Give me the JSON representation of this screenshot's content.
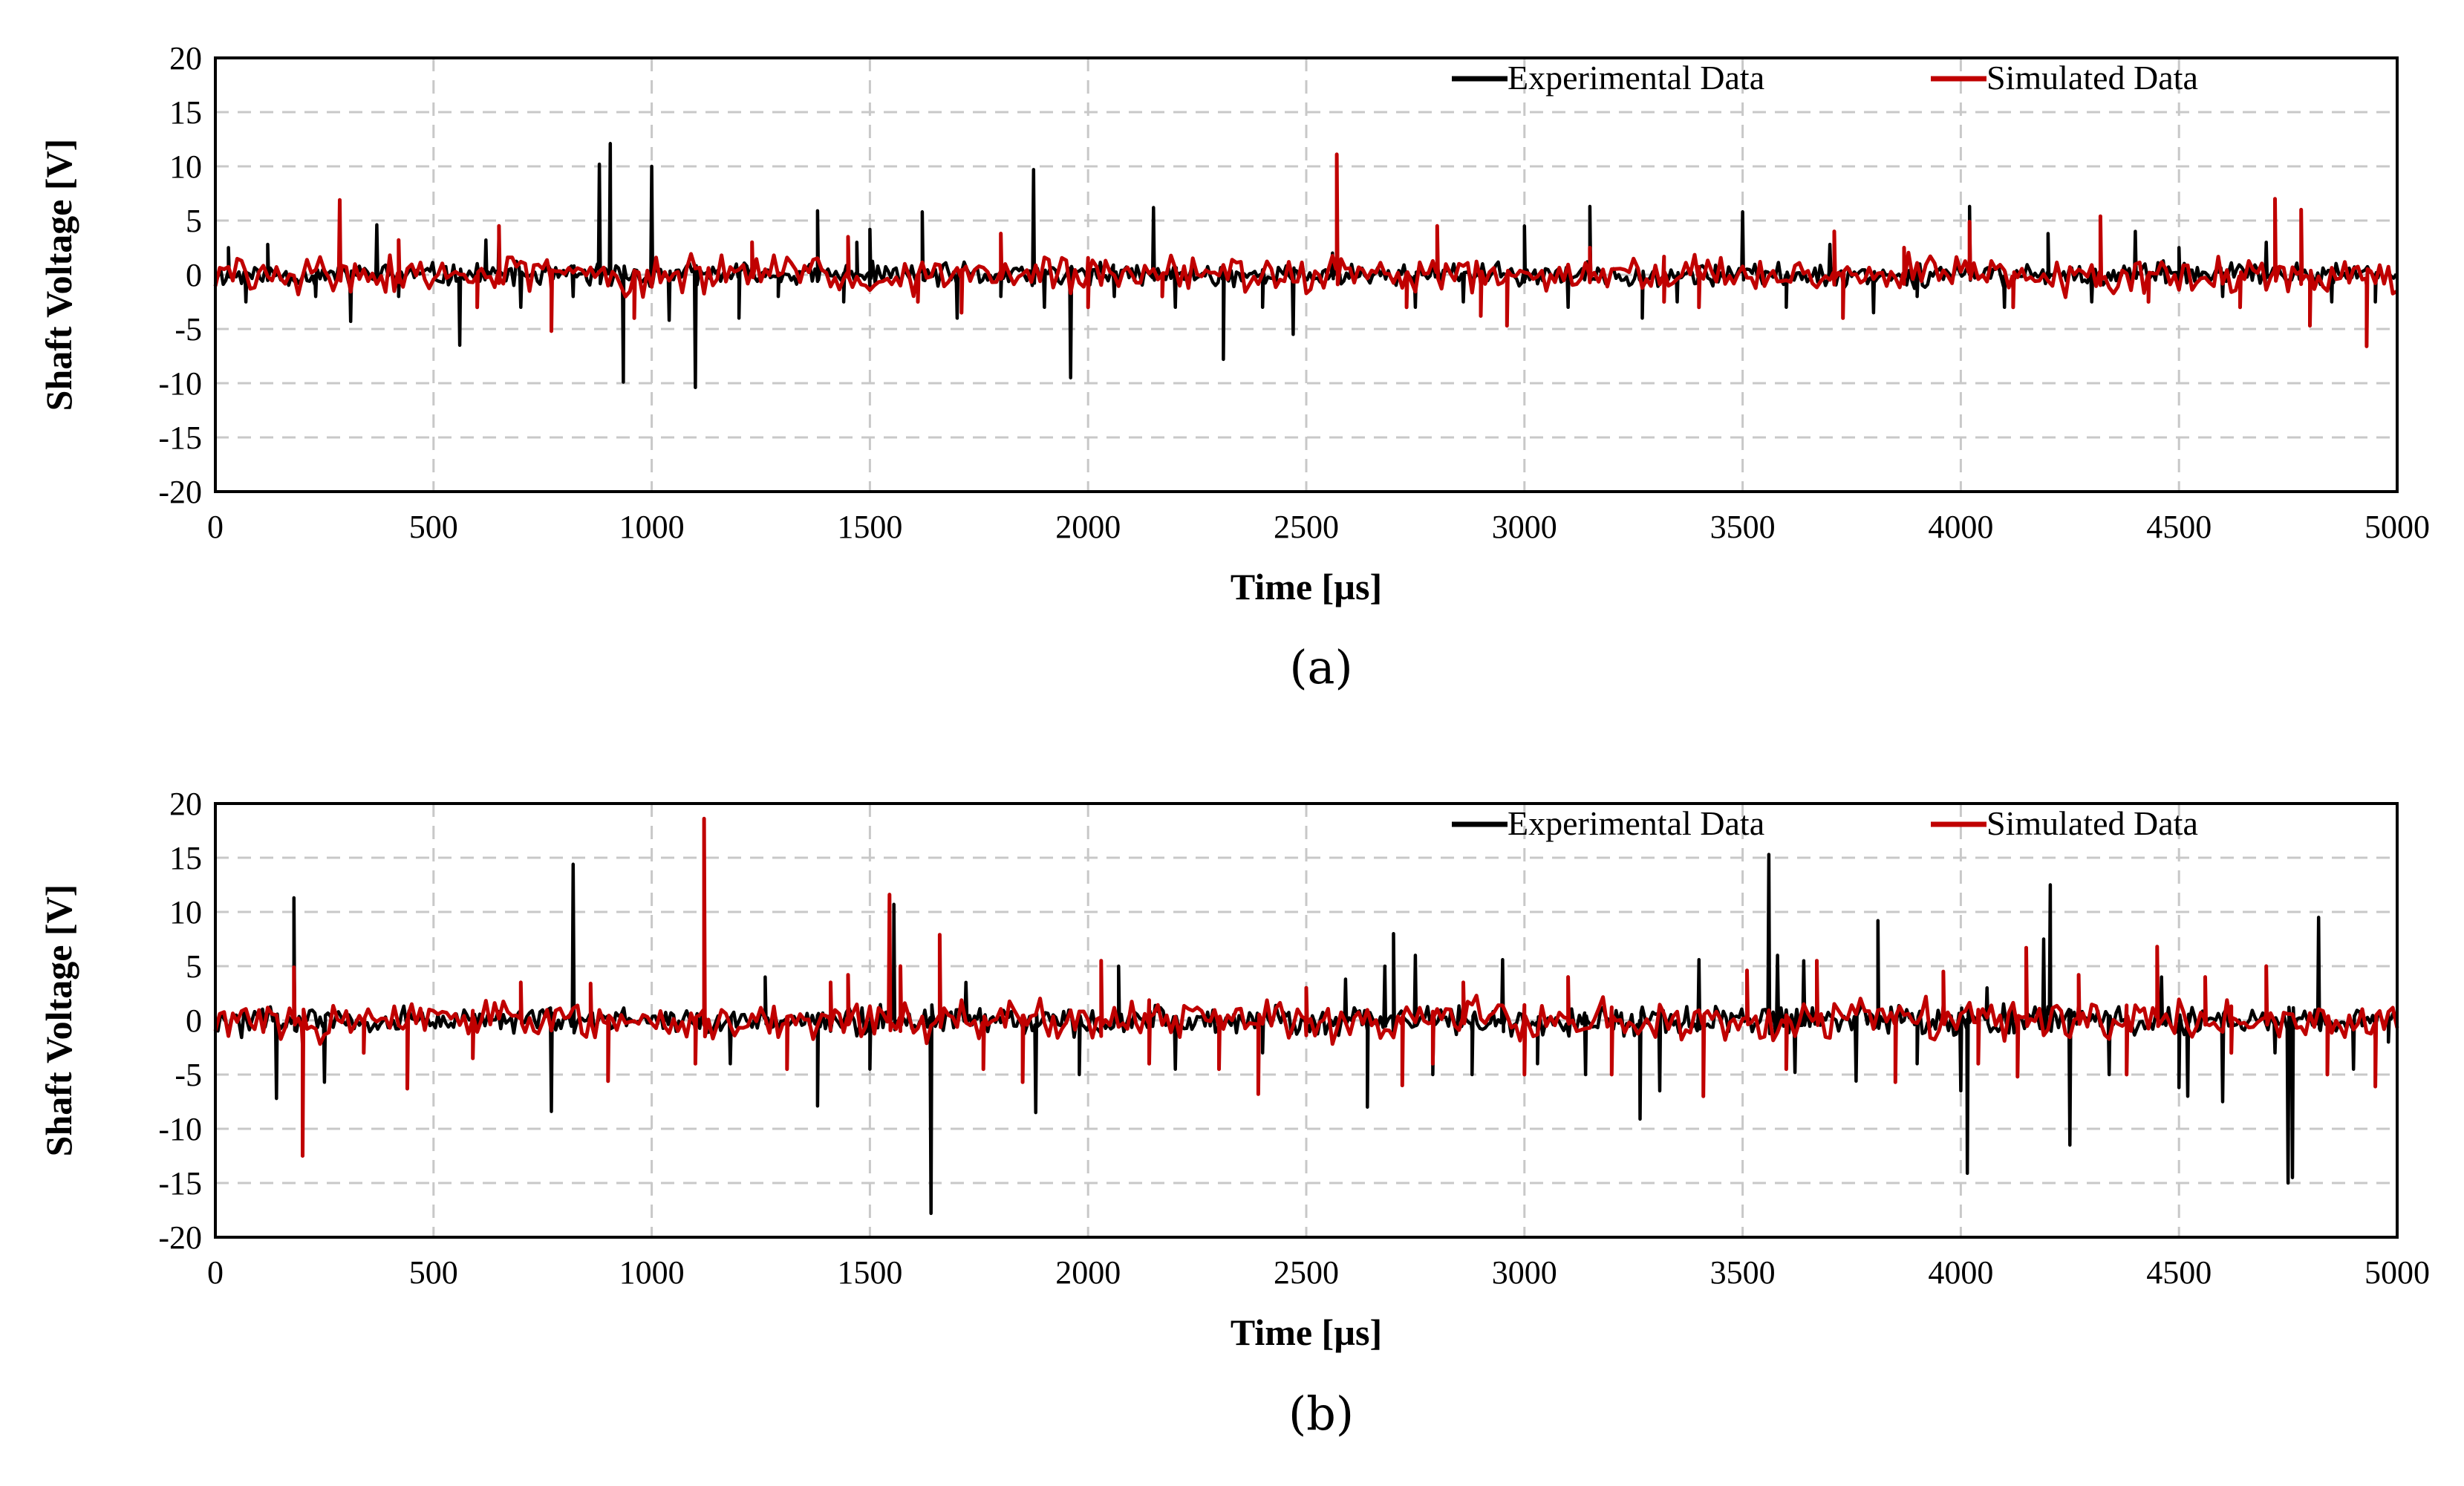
{
  "chart_data": [
    {
      "type": "line",
      "caption": "(a)",
      "xlabel": "Time [µs]",
      "ylabel": "Shaft Voltage [V]",
      "xlim": [
        0,
        5000
      ],
      "ylim": [
        -20,
        20
      ],
      "xticks": [
        0,
        500,
        1000,
        1500,
        2000,
        2500,
        3000,
        3500,
        4000,
        4500,
        5000
      ],
      "yticks": [
        20,
        15,
        10,
        5,
        0,
        -5,
        -10,
        -15,
        -20
      ],
      "grid": true,
      "legend": "top-right",
      "noise_amplitude": {
        "Experimental Data": 1.3,
        "Simulated Data": 2.2
      },
      "series": [
        {
          "name": "Experimental Data",
          "color": "#000000",
          "spikes": [
            [
              30,
              2.5
            ],
            [
              70,
              -2.5
            ],
            [
              120,
              2.8
            ],
            [
              230,
              -2
            ],
            [
              310,
              -4.3
            ],
            [
              370,
              4.6
            ],
            [
              420,
              -2
            ],
            [
              560,
              -6.5
            ],
            [
              620,
              3.2
            ],
            [
              650,
              3.8
            ],
            [
              700,
              -3
            ],
            [
              820,
              -2
            ],
            [
              880,
              10.2
            ],
            [
              905,
              12.1
            ],
            [
              935,
              -9.9
            ],
            [
              1000,
              10
            ],
            [
              1040,
              -4.2
            ],
            [
              1100,
              -10.4
            ],
            [
              1200,
              -4
            ],
            [
              1290,
              -2
            ],
            [
              1380,
              5.9
            ],
            [
              1440,
              -2.5
            ],
            [
              1470,
              3
            ],
            [
              1500,
              4.2
            ],
            [
              1620,
              5.8
            ],
            [
              1700,
              -4
            ],
            [
              1800,
              -2
            ],
            [
              1875,
              9.7
            ],
            [
              1900,
              -3
            ],
            [
              1960,
              -9.5
            ],
            [
              2060,
              -2
            ],
            [
              2150,
              6.2
            ],
            [
              2200,
              -3
            ],
            [
              2310,
              -7.8
            ],
            [
              2400,
              -3
            ],
            [
              2470,
              -5.5
            ],
            [
              2560,
              2
            ],
            [
              2750,
              -3
            ],
            [
              2860,
              -2.5
            ],
            [
              3000,
              4.5
            ],
            [
              3100,
              -3
            ],
            [
              3150,
              6.3
            ],
            [
              3270,
              -4
            ],
            [
              3350,
              -2.5
            ],
            [
              3500,
              5.8
            ],
            [
              3600,
              -3
            ],
            [
              3700,
              2.8
            ],
            [
              3800,
              -3.5
            ],
            [
              3900,
              -2
            ],
            [
              4020,
              6.3
            ],
            [
              4100,
              -3
            ],
            [
              4200,
              3.8
            ],
            [
              4300,
              -2.5
            ],
            [
              4400,
              4
            ],
            [
              4500,
              2.5
            ],
            [
              4600,
              -2
            ],
            [
              4700,
              3
            ],
            [
              4850,
              -2.5
            ],
            [
              4950,
              -2.5
            ]
          ]
        },
        {
          "name": "Simulated Data",
          "color": "#c00000",
          "spikes": [
            [
              285,
              6.9
            ],
            [
              420,
              3.2
            ],
            [
              600,
              -3
            ],
            [
              650,
              4.5
            ],
            [
              770,
              -5.2
            ],
            [
              960,
              -4
            ],
            [
              1230,
              3
            ],
            [
              1450,
              3.5
            ],
            [
              1610,
              -2.5
            ],
            [
              1710,
              -3.5
            ],
            [
              1800,
              3.8
            ],
            [
              2000,
              -3
            ],
            [
              2170,
              -2
            ],
            [
              2570,
              11.1
            ],
            [
              2730,
              -3
            ],
            [
              2800,
              4.5
            ],
            [
              2900,
              -3.8
            ],
            [
              2960,
              -4.7
            ],
            [
              3150,
              2.5
            ],
            [
              3320,
              -2.5
            ],
            [
              3400,
              -3
            ],
            [
              3710,
              4
            ],
            [
              3730,
              -4
            ],
            [
              3870,
              2.5
            ],
            [
              4020,
              4.9
            ],
            [
              4120,
              -3
            ],
            [
              4320,
              5.4
            ],
            [
              4430,
              -2.5
            ],
            [
              4640,
              -3
            ],
            [
              4720,
              7
            ],
            [
              4780,
              6
            ],
            [
              4800,
              -4.7
            ],
            [
              4930,
              -6.6
            ]
          ]
        }
      ]
    },
    {
      "type": "line",
      "caption": "(b)",
      "xlabel": "Time [µs]",
      "ylabel": "Shaft Voltage [V]",
      "xlim": [
        0,
        5000
      ],
      "ylim": [
        -20,
        20
      ],
      "xticks": [
        0,
        500,
        1000,
        1500,
        2000,
        2500,
        3000,
        3500,
        4000,
        4500,
        5000
      ],
      "yticks": [
        20,
        15,
        10,
        5,
        0,
        -5,
        -10,
        -15,
        -20
      ],
      "grid": true,
      "legend": "top-right",
      "noise_amplitude": {
        "Experimental Data": 1.6,
        "Simulated Data": 2.4
      },
      "series": [
        {
          "name": "Experimental Data",
          "color": "#000000",
          "spikes": [
            [
              140,
              -7.2
            ],
            [
              180,
              11.3
            ],
            [
              250,
              -5.7
            ],
            [
              770,
              -8.4
            ],
            [
              820,
              14.4
            ],
            [
              1180,
              -4
            ],
            [
              1260,
              4
            ],
            [
              1380,
              -7.9
            ],
            [
              1500,
              -4.5
            ],
            [
              1555,
              10.7
            ],
            [
              1640,
              -17.8
            ],
            [
              1720,
              3.5
            ],
            [
              1880,
              -8.5
            ],
            [
              1980,
              -5
            ],
            [
              2070,
              5
            ],
            [
              2200,
              -4.5
            ],
            [
              2400,
              -3
            ],
            [
              2590,
              3.8
            ],
            [
              2640,
              -8
            ],
            [
              2680,
              5
            ],
            [
              2700,
              8
            ],
            [
              2750,
              6
            ],
            [
              2790,
              -5
            ],
            [
              2880,
              -5
            ],
            [
              2950,
              5.6
            ],
            [
              3030,
              -4
            ],
            [
              3140,
              -5
            ],
            [
              3265,
              -9.1
            ],
            [
              3310,
              -6.5
            ],
            [
              3400,
              5.6
            ],
            [
              3560,
              15.3
            ],
            [
              3580,
              6
            ],
            [
              3620,
              -4.8
            ],
            [
              3640,
              5.5
            ],
            [
              3760,
              -5.6
            ],
            [
              3810,
              9.2
            ],
            [
              3900,
              -4
            ],
            [
              4000,
              -6.5
            ],
            [
              4015,
              -14.1
            ],
            [
              4060,
              3
            ],
            [
              4190,
              7.5
            ],
            [
              4205,
              12.5
            ],
            [
              4250,
              -11.5
            ],
            [
              4340,
              -5
            ],
            [
              4460,
              4
            ],
            [
              4500,
              -6.2
            ],
            [
              4520,
              -7
            ],
            [
              4600,
              -7.5
            ],
            [
              4720,
              -3
            ],
            [
              4750,
              -15
            ],
            [
              4760,
              -14.5
            ],
            [
              4820,
              9.5
            ],
            [
              4900,
              -4.5
            ],
            [
              4980,
              -2
            ]
          ]
        },
        {
          "name": "Simulated Data",
          "color": "#c00000",
          "spikes": [
            [
              180,
              4.9
            ],
            [
              200,
              -12.5
            ],
            [
              340,
              -3
            ],
            [
              440,
              -6.3
            ],
            [
              590,
              -3.5
            ],
            [
              700,
              3.5
            ],
            [
              860,
              3.4
            ],
            [
              900,
              -5.6
            ],
            [
              1100,
              -4
            ],
            [
              1120,
              18.6
            ],
            [
              1310,
              -4.5
            ],
            [
              1410,
              3.5
            ],
            [
              1450,
              4.2
            ],
            [
              1545,
              11.6
            ],
            [
              1570,
              5
            ],
            [
              1660,
              7.9
            ],
            [
              1760,
              -4.5
            ],
            [
              1850,
              -5.7
            ],
            [
              2030,
              5.5
            ],
            [
              2140,
              -4
            ],
            [
              2300,
              -4.5
            ],
            [
              2390,
              -6.8
            ],
            [
              2500,
              3
            ],
            [
              2720,
              -6
            ],
            [
              2790,
              -4
            ],
            [
              2860,
              3.5
            ],
            [
              3000,
              -5
            ],
            [
              3100,
              4
            ],
            [
              3200,
              -5
            ],
            [
              3410,
              -7
            ],
            [
              3510,
              4.6
            ],
            [
              3600,
              -4.5
            ],
            [
              3670,
              5.5
            ],
            [
              3850,
              -5.7
            ],
            [
              3960,
              4.5
            ],
            [
              4040,
              -4
            ],
            [
              4130,
              -5.2
            ],
            [
              4150,
              6.7
            ],
            [
              4270,
              4.2
            ],
            [
              4380,
              -5
            ],
            [
              4450,
              6.8
            ],
            [
              4560,
              4
            ],
            [
              4620,
              -3
            ],
            [
              4700,
              5
            ],
            [
              4840,
              -5
            ],
            [
              4950,
              -6.1
            ]
          ]
        }
      ]
    }
  ]
}
